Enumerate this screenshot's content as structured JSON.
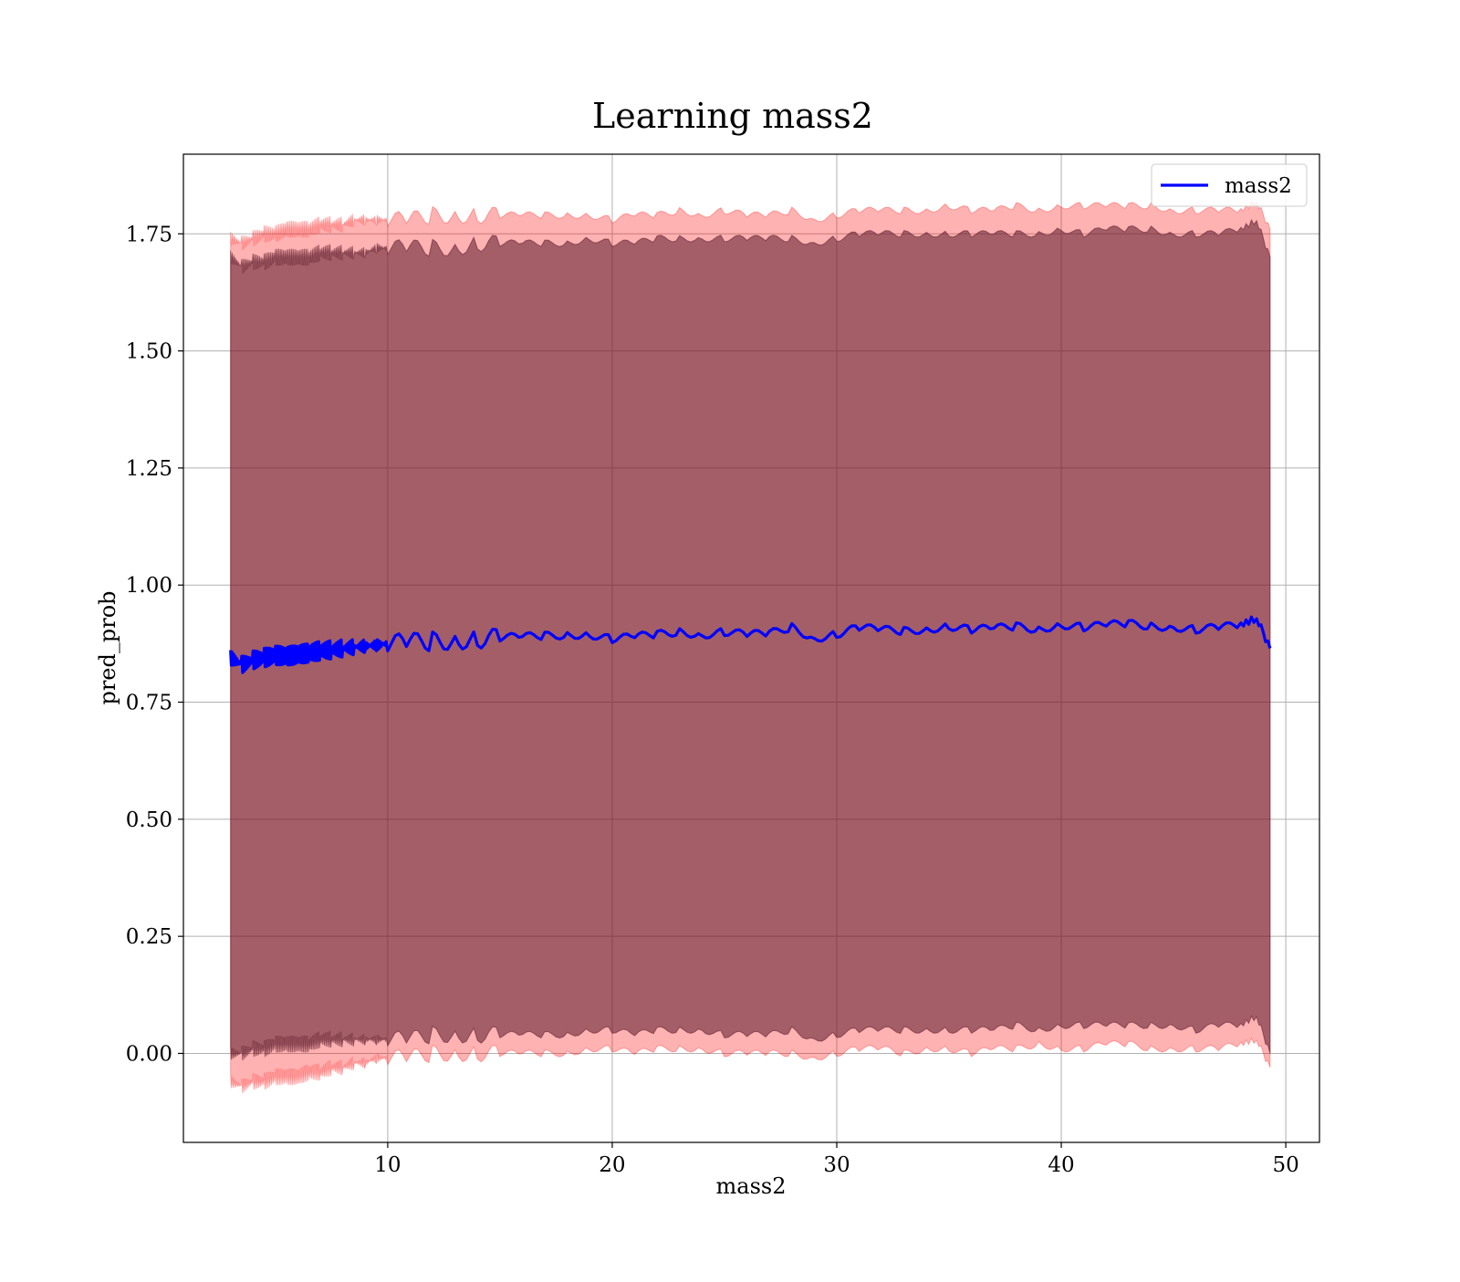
{
  "chart_data": {
    "type": "line",
    "title": "Learning mass2",
    "xlabel": "mass2",
    "ylabel": "pred_prob",
    "xlim": [
      0.9,
      51.5
    ],
    "ylim": [
      -0.19,
      1.92
    ],
    "x_ticks": [
      10,
      20,
      30,
      40,
      50
    ],
    "x_tick_labels": [
      "10",
      "20",
      "30",
      "40",
      "50"
    ],
    "y_ticks": [
      0.0,
      0.25,
      0.5,
      0.75,
      1.0,
      1.25,
      1.5,
      1.75
    ],
    "y_tick_labels": [
      "0.00",
      "0.25",
      "0.50",
      "0.75",
      "1.00",
      "1.25",
      "1.50",
      "1.75"
    ],
    "grid": true,
    "legend": {
      "position": "top-right",
      "entries": [
        "mass2"
      ]
    },
    "series": [
      {
        "name": "mass2",
        "color": "#0000ff",
        "x": [
          3.0,
          3.5,
          4.0,
          4.5,
          5.0,
          5.5,
          6.0,
          6.5,
          7.0,
          7.5,
          8.0,
          8.5,
          9.0,
          9.5,
          10.0,
          11.0,
          12.0,
          13.0,
          14.0,
          15.0,
          16.0,
          17.0,
          18.0,
          19.0,
          20.0,
          21.0,
          22.0,
          23.0,
          24.0,
          25.0,
          26.0,
          27.0,
          28.0,
          29.0,
          30.0,
          31.0,
          32.0,
          33.0,
          34.0,
          35.0,
          36.0,
          37.0,
          38.0,
          39.0,
          40.0,
          41.0,
          42.0,
          43.0,
          44.0,
          45.0,
          46.0,
          47.0,
          48.0,
          48.7,
          49.3
        ],
        "y": [
          0.845,
          0.83,
          0.84,
          0.845,
          0.85,
          0.848,
          0.852,
          0.855,
          0.86,
          0.862,
          0.865,
          0.868,
          0.87,
          0.872,
          0.875,
          0.878,
          0.88,
          0.882,
          0.885,
          0.888,
          0.89,
          0.892,
          0.893,
          0.894,
          0.885,
          0.89,
          0.895,
          0.9,
          0.893,
          0.9,
          0.895,
          0.897,
          0.91,
          0.885,
          0.895,
          0.91,
          0.905,
          0.902,
          0.905,
          0.912,
          0.905,
          0.908,
          0.912,
          0.905,
          0.915,
          0.91,
          0.915,
          0.918,
          0.912,
          0.91,
          0.905,
          0.91,
          0.915,
          0.93,
          0.865
        ],
        "spread": [
          0.83,
          0.84,
          0.84,
          0.84,
          0.84,
          0.84,
          0.84,
          0.84,
          0.84,
          0.84,
          0.84,
          0.84,
          0.84,
          0.84,
          0.84,
          0.84,
          0.84,
          0.84,
          0.84,
          0.84,
          0.84,
          0.84,
          0.84,
          0.84,
          0.84,
          0.84,
          0.84,
          0.84,
          0.84,
          0.84,
          0.84,
          0.84,
          0.84,
          0.84,
          0.84,
          0.84,
          0.84,
          0.84,
          0.84,
          0.84,
          0.84,
          0.84,
          0.84,
          0.84,
          0.84,
          0.84,
          0.84,
          0.84,
          0.84,
          0.84,
          0.84,
          0.84,
          0.84,
          0.84,
          0.83
        ]
      }
    ],
    "bands": [
      {
        "name": "outer band",
        "color": "#ff0000",
        "opacity": 0.3,
        "lower": [
          -0.06,
          -0.07,
          -0.06,
          -0.06,
          -0.05,
          -0.05,
          -0.05,
          -0.04,
          -0.04,
          -0.03,
          -0.03,
          -0.02,
          -0.02,
          -0.01,
          -0.01,
          -0.01,
          0.0,
          0.0,
          0.0,
          0.0,
          0.0,
          0.0,
          0.0,
          0.01,
          0.01,
          0.0,
          0.01,
          0.01,
          0.01,
          0.0,
          0.0,
          0.0,
          0.0,
          -0.01,
          0.0,
          0.01,
          0.01,
          0.0,
          0.01,
          0.01,
          0.0,
          0.01,
          0.01,
          0.02,
          0.01,
          0.01,
          0.02,
          0.02,
          0.01,
          0.01,
          0.01,
          0.01,
          0.02,
          0.03,
          -0.03
        ],
        "upper": [
          1.74,
          1.73,
          1.74,
          1.75,
          1.75,
          1.76,
          1.76,
          1.76,
          1.77,
          1.77,
          1.77,
          1.78,
          1.78,
          1.78,
          1.78,
          1.78,
          1.79,
          1.79,
          1.79,
          1.79,
          1.79,
          1.79,
          1.79,
          1.79,
          1.78,
          1.79,
          1.79,
          1.8,
          1.79,
          1.8,
          1.79,
          1.79,
          1.8,
          1.78,
          1.79,
          1.8,
          1.8,
          1.8,
          1.8,
          1.81,
          1.8,
          1.8,
          1.81,
          1.8,
          1.81,
          1.81,
          1.81,
          1.81,
          1.81,
          1.8,
          1.8,
          1.8,
          1.8,
          1.82,
          1.76
        ]
      },
      {
        "name": "inner band",
        "color": "#5a1a2a",
        "opacity": 0.55,
        "lower": [
          0.0,
          0.0,
          0.01,
          0.01,
          0.02,
          0.02,
          0.02,
          0.02,
          0.03,
          0.03,
          0.03,
          0.03,
          0.03,
          0.03,
          0.03,
          0.03,
          0.04,
          0.04,
          0.04,
          0.04,
          0.04,
          0.04,
          0.04,
          0.05,
          0.05,
          0.04,
          0.05,
          0.05,
          0.05,
          0.04,
          0.04,
          0.04,
          0.05,
          0.03,
          0.04,
          0.05,
          0.05,
          0.05,
          0.05,
          0.05,
          0.05,
          0.05,
          0.06,
          0.05,
          0.06,
          0.06,
          0.06,
          0.06,
          0.06,
          0.06,
          0.05,
          0.06,
          0.06,
          0.08,
          0.0
        ],
        "upper": [
          1.7,
          1.68,
          1.69,
          1.69,
          1.7,
          1.7,
          1.7,
          1.7,
          1.71,
          1.71,
          1.71,
          1.71,
          1.71,
          1.72,
          1.72,
          1.72,
          1.72,
          1.72,
          1.73,
          1.73,
          1.73,
          1.73,
          1.73,
          1.74,
          1.73,
          1.73,
          1.74,
          1.74,
          1.74,
          1.74,
          1.74,
          1.74,
          1.74,
          1.73,
          1.74,
          1.75,
          1.75,
          1.75,
          1.75,
          1.75,
          1.75,
          1.75,
          1.75,
          1.75,
          1.76,
          1.75,
          1.76,
          1.76,
          1.76,
          1.75,
          1.75,
          1.75,
          1.76,
          1.78,
          1.7
        ]
      }
    ]
  }
}
